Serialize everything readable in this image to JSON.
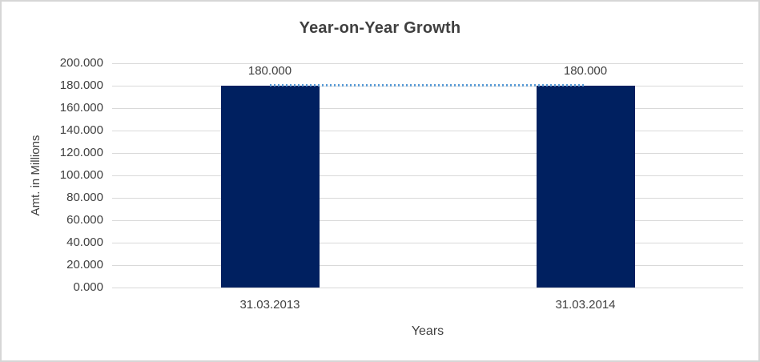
{
  "chart_data": {
    "type": "bar",
    "title": "Year-on-Year Growth",
    "xlabel": "Years",
    "ylabel": "Amt. in Millions",
    "categories": [
      "31.03.2013",
      "31.03.2014"
    ],
    "series": [
      {
        "name": "amount-bars",
        "type": "bar",
        "values": [
          180,
          180
        ],
        "data_labels": [
          "180.000",
          "180.000"
        ],
        "color": "#002060"
      },
      {
        "name": "growth-trend-line",
        "type": "line",
        "line_style": "dotted",
        "values": [
          180,
          180
        ],
        "color": "#5b9bd5"
      }
    ],
    "y_axis": {
      "min": 0,
      "max": 200,
      "step": 20,
      "tick_labels": [
        "0.000",
        "20.000",
        "40.000",
        "60.000",
        "80.000",
        "100.000",
        "120.000",
        "140.000",
        "160.000",
        "180.000",
        "200.000"
      ]
    },
    "grid": true,
    "legend": false
  }
}
